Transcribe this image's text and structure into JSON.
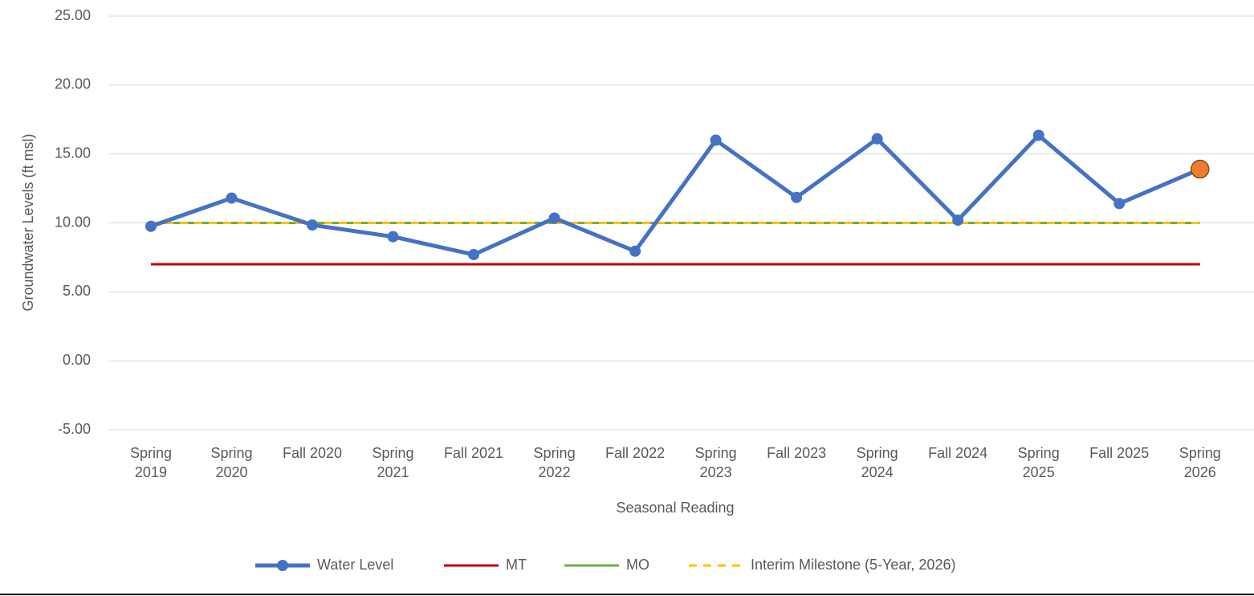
{
  "chart_data": {
    "type": "line",
    "y_label": "Groundwater Levels (ft msl)",
    "x_label": "Seasonal Reading",
    "categories": [
      "Spring 2019",
      "Spring 2020",
      "Fall 2020",
      "Spring 2021",
      "Fall 2021",
      "Spring 2022",
      "Fall 2022",
      "Spring 2023",
      "Fall 2023",
      "Spring 2024",
      "Fall 2024",
      "Spring 2025",
      "Fall 2025",
      "Spring 2026"
    ],
    "series": [
      {
        "name": "Water Level",
        "color": "#4472c4",
        "markers": true,
        "values": [
          9.75,
          11.8,
          9.85,
          9.0,
          7.7,
          10.35,
          7.95,
          16.0,
          11.85,
          16.1,
          10.2,
          16.35,
          11.4,
          13.9
        ],
        "highlight": {
          "index": 13,
          "color": "#ed7d31"
        }
      },
      {
        "name": "MT",
        "color": "#c00000",
        "values": [
          7,
          7,
          7,
          7,
          7,
          7,
          7,
          7,
          7,
          7,
          7,
          7,
          7,
          7
        ]
      },
      {
        "name": "MO",
        "color": "#70ad47",
        "values": [
          10,
          10,
          10,
          10,
          10,
          10,
          10,
          10,
          10,
          10,
          10,
          10,
          10,
          10
        ]
      },
      {
        "name": "Interim Milestone (5-Year, 2026)",
        "color": "#ffc000",
        "dashed": true,
        "values": [
          10,
          10,
          10,
          10,
          10,
          10,
          10,
          10,
          10,
          10,
          10,
          10,
          10,
          10
        ]
      }
    ],
    "ylim": [
      -5,
      25
    ],
    "yticks": [
      {
        "value": -5,
        "label": "-5.00"
      },
      {
        "value": 0,
        "label": "0.00"
      },
      {
        "value": 5,
        "label": "5.00"
      },
      {
        "value": 10,
        "label": "10.00"
      },
      {
        "value": 15,
        "label": "15.00"
      },
      {
        "value": 20,
        "label": "20.00"
      },
      {
        "value": 25,
        "label": "25.00"
      }
    ],
    "grid": true,
    "legend": "bottom"
  }
}
